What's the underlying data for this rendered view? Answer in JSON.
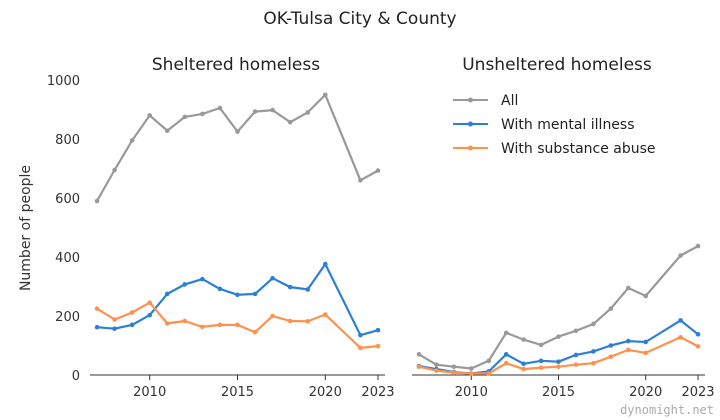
{
  "title": "OK-Tulsa City & County",
  "watermark": "dynomight.net",
  "chart_data": [
    {
      "type": "line",
      "title": "Sheltered homeless",
      "ylabel": "Number of people",
      "xlim": [
        2006.6,
        2023.4
      ],
      "ylim": [
        0,
        1000
      ],
      "xticks": [
        2010,
        2015,
        2020,
        2023
      ],
      "yticks": [
        0,
        200,
        400,
        600,
        800,
        1000
      ],
      "x": [
        2007,
        2008,
        2009,
        2010,
        2011,
        2012,
        2013,
        2014,
        2015,
        2016,
        2017,
        2018,
        2019,
        2020,
        2022,
        2023
      ],
      "series": [
        {
          "name": "All",
          "color": "#999999",
          "values": [
            590,
            695,
            795,
            880,
            828,
            875,
            885,
            905,
            825,
            893,
            898,
            857,
            890,
            950,
            660,
            693
          ]
        },
        {
          "name": "With mental illness",
          "color": "#2b7fd6",
          "values": [
            162,
            157,
            170,
            203,
            275,
            307,
            325,
            292,
            272,
            275,
            328,
            298,
            290,
            376,
            135,
            152
          ]
        },
        {
          "name": "With substance abuse",
          "color": "#ff914d",
          "values": [
            225,
            188,
            212,
            245,
            175,
            183,
            163,
            170,
            170,
            145,
            200,
            183,
            182,
            205,
            92,
            98
          ]
        }
      ]
    },
    {
      "type": "line",
      "title": "Unsheltered homeless",
      "ylabel": "",
      "xlim": [
        2006.6,
        2023.4
      ],
      "ylim": [
        0,
        1000
      ],
      "xticks": [
        2010,
        2015,
        2020,
        2023
      ],
      "yticks": [],
      "legend": "top-left",
      "x": [
        2007,
        2008,
        2009,
        2010,
        2011,
        2012,
        2013,
        2014,
        2015,
        2016,
        2017,
        2018,
        2019,
        2020,
        2022,
        2023
      ],
      "series": [
        {
          "name": "All",
          "color": "#999999",
          "values": [
            70,
            35,
            28,
            22,
            48,
            143,
            120,
            102,
            130,
            150,
            173,
            225,
            295,
            268,
            405,
            437
          ]
        },
        {
          "name": "With mental illness",
          "color": "#2b7fd6",
          "values": [
            30,
            20,
            10,
            5,
            12,
            70,
            38,
            48,
            45,
            68,
            80,
            100,
            115,
            112,
            185,
            138
          ]
        },
        {
          "name": "With substance abuse",
          "color": "#ff914d",
          "values": [
            28,
            15,
            8,
            5,
            5,
            40,
            20,
            25,
            28,
            35,
            40,
            62,
            85,
            75,
            128,
            97
          ]
        }
      ]
    }
  ]
}
